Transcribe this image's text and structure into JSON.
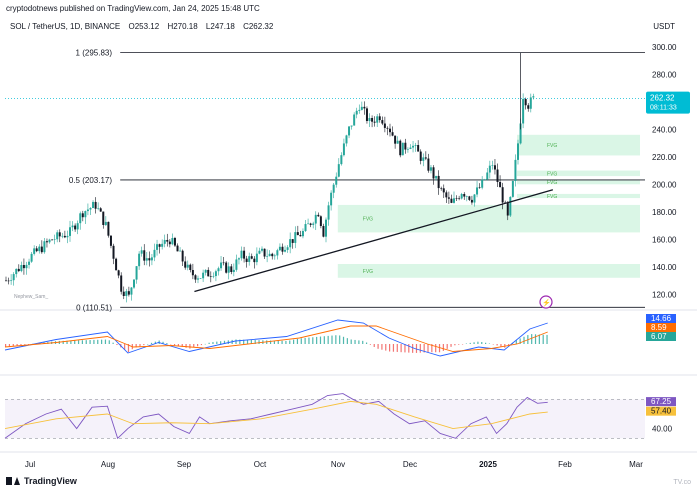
{
  "header": {
    "publisher": "cryptodotnews published on TradingView.com, Jan 24, 2025 15:48 UTC",
    "symbol": "SOL / TetherUS, 1D, BINANCE",
    "open": "O253.12",
    "high": "H270.18",
    "low": "L247.18",
    "close": "C262.32",
    "currency": "USDT"
  },
  "footer": {
    "brand": "TradingView",
    "watermark": "TV.co"
  },
  "colors": {
    "up": "#26a69a",
    "down": "#131722",
    "fvg": "#d6f5e3",
    "fvg_text": "#4caf50",
    "price_tag": "#00bcd4",
    "macd": "#2962ff",
    "signal": "#ff6d00",
    "rsi": "#7e57c2",
    "rsi_ma": "#f7c13b"
  },
  "chart_data": [
    {
      "type": "candlestick",
      "title": "SOL / TetherUS, 1D, BINANCE",
      "ylim": [
        110,
        305
      ],
      "y_ticks": [
        "300.00",
        "280.00",
        "260.00",
        "240.00",
        "220.00",
        "200.00",
        "180.00",
        "160.00",
        "140.00",
        "120.00"
      ],
      "x_ticks": [
        "Jul",
        "Aug",
        "Sep",
        "Oct",
        "Nov",
        "Dec",
        "2025",
        "Feb",
        "Mar"
      ],
      "close_points": [
        [
          0,
          130
        ],
        [
          10,
          148
        ],
        [
          18,
          160
        ],
        [
          25,
          165
        ],
        [
          30,
          180
        ],
        [
          35,
          185
        ],
        [
          39,
          170
        ],
        [
          42,
          148
        ],
        [
          45,
          125
        ],
        [
          48,
          118
        ],
        [
          52,
          150
        ],
        [
          56,
          145
        ],
        [
          60,
          155
        ],
        [
          64,
          160
        ],
        [
          68,
          148
        ],
        [
          72,
          135
        ],
        [
          76,
          133
        ],
        [
          80,
          136
        ],
        [
          84,
          140
        ],
        [
          88,
          138
        ],
        [
          92,
          148
        ],
        [
          96,
          145
        ],
        [
          100,
          150
        ],
        [
          104,
          148
        ],
        [
          108,
          155
        ],
        [
          112,
          160
        ],
        [
          116,
          165
        ],
        [
          120,
          175
        ],
        [
          122,
          180
        ],
        [
          124,
          165
        ],
        [
          126,
          185
        ],
        [
          130,
          215
        ],
        [
          134,
          240
        ],
        [
          138,
          258
        ],
        [
          142,
          245
        ],
        [
          146,
          250
        ],
        [
          150,
          240
        ],
        [
          154,
          225
        ],
        [
          158,
          230
        ],
        [
          162,
          220
        ],
        [
          166,
          210
        ],
        [
          170,
          195
        ],
        [
          174,
          185
        ],
        [
          178,
          195
        ],
        [
          182,
          190
        ],
        [
          186,
          200
        ],
        [
          190,
          215
        ],
        [
          194,
          190
        ],
        [
          196,
          175
        ],
        [
          198,
          200
        ],
        [
          200,
          230
        ],
        [
          202,
          265
        ],
        [
          204,
          258
        ],
        [
          206,
          262
        ]
      ],
      "current_price": "262.32",
      "countdown": "08:11:33",
      "fib_levels": [
        {
          "label": "1 (295.83)",
          "value": 295.83
        },
        {
          "label": "0.5 (203.17)",
          "value": 203.17
        },
        {
          "label": "0 (110.51)",
          "value": 110.51
        }
      ],
      "trendline": {
        "from": [
          74,
          122
        ],
        "to": [
          214,
          196
        ]
      },
      "fvg_zones": [
        {
          "label": "FVG",
          "low": 221,
          "high": 236
        },
        {
          "label": "FVG",
          "low": 206,
          "high": 210
        },
        {
          "label": "FVG",
          "low": 200,
          "high": 203
        },
        {
          "label": "FVG",
          "low": 190,
          "high": 193
        },
        {
          "label": "FVG",
          "low": 165,
          "high": 185
        },
        {
          "label": "FVG",
          "low": 132,
          "high": 142
        }
      ],
      "annotation": "Nephew_Sam_"
    },
    {
      "type": "macd",
      "values_labels": [
        "14.66",
        "8.59",
        "6.07"
      ],
      "macd": [
        [
          0,
          -4
        ],
        [
          20,
          3
        ],
        [
          40,
          8
        ],
        [
          48,
          -6
        ],
        [
          60,
          1
        ],
        [
          72,
          -5
        ],
        [
          90,
          2
        ],
        [
          110,
          5
        ],
        [
          130,
          16
        ],
        [
          140,
          14
        ],
        [
          150,
          4
        ],
        [
          160,
          -3
        ],
        [
          170,
          -8
        ],
        [
          185,
          -2
        ],
        [
          195,
          -4
        ],
        [
          205,
          10
        ],
        [
          212,
          14
        ]
      ],
      "signal": [
        [
          0,
          -2
        ],
        [
          20,
          1
        ],
        [
          40,
          5
        ],
        [
          50,
          -2
        ],
        [
          65,
          -1
        ],
        [
          80,
          -3
        ],
        [
          95,
          0
        ],
        [
          115,
          4
        ],
        [
          135,
          12
        ],
        [
          145,
          12
        ],
        [
          155,
          6
        ],
        [
          165,
          0
        ],
        [
          175,
          -5
        ],
        [
          190,
          -3
        ],
        [
          200,
          0
        ],
        [
          212,
          8
        ]
      ]
    },
    {
      "type": "rsi",
      "ylim": [
        20,
        90
      ],
      "levels": {
        "upper": 70,
        "lower": 30
      },
      "values_labels": [
        "67.25",
        "57.40"
      ],
      "tick": "40.00",
      "rsi": [
        [
          0,
          30
        ],
        [
          8,
          45
        ],
        [
          16,
          55
        ],
        [
          22,
          60
        ],
        [
          28,
          40
        ],
        [
          34,
          62
        ],
        [
          40,
          63
        ],
        [
          44,
          30
        ],
        [
          48,
          40
        ],
        [
          54,
          52
        ],
        [
          60,
          55
        ],
        [
          66,
          42
        ],
        [
          72,
          35
        ],
        [
          76,
          52
        ],
        [
          80,
          45
        ],
        [
          88,
          48
        ],
        [
          96,
          50
        ],
        [
          104,
          55
        ],
        [
          112,
          60
        ],
        [
          120,
          65
        ],
        [
          126,
          74
        ],
        [
          132,
          76
        ],
        [
          136,
          70
        ],
        [
          140,
          65
        ],
        [
          146,
          68
        ],
        [
          152,
          55
        ],
        [
          158,
          45
        ],
        [
          164,
          48
        ],
        [
          170,
          35
        ],
        [
          176,
          30
        ],
        [
          182,
          45
        ],
        [
          188,
          52
        ],
        [
          192,
          35
        ],
        [
          196,
          45
        ],
        [
          200,
          62
        ],
        [
          204,
          72
        ],
        [
          208,
          66
        ],
        [
          212,
          67
        ]
      ],
      "rsi_ma": [
        [
          0,
          40
        ],
        [
          20,
          50
        ],
        [
          40,
          55
        ],
        [
          50,
          45
        ],
        [
          65,
          46
        ],
        [
          80,
          45
        ],
        [
          100,
          50
        ],
        [
          120,
          60
        ],
        [
          135,
          68
        ],
        [
          145,
          65
        ],
        [
          160,
          52
        ],
        [
          175,
          40
        ],
        [
          190,
          45
        ],
        [
          205,
          55
        ],
        [
          212,
          57
        ]
      ]
    }
  ]
}
